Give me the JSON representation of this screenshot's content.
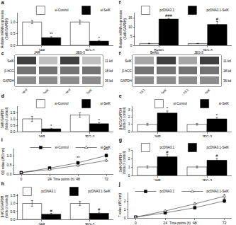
{
  "chart_data": [
    {
      "type": "bar",
      "title": "a",
      "ylabel": "Relative mRNA expression\n(SelK/GAPDH)",
      "categories": [
        "JAR",
        "JEG-3"
      ],
      "series": [
        {
          "name": "si-Control",
          "color": "white",
          "values": [
            1.0,
            1.0
          ],
          "errors": [
            0.07,
            0.09
          ]
        },
        {
          "name": "si-SelK",
          "color": "black",
          "values": [
            0.33,
            0.18
          ],
          "errors": [
            0.04,
            0.03
          ],
          "sig_labels": [
            "**",
            "*"
          ]
        }
      ],
      "ylim": [
        0,
        1.4
      ],
      "yticks": [
        {
          "value": 0.0,
          "label": "0.0"
        },
        0.5,
        {
          "value": 1.0,
          "label": "1.0"
        }
      ],
      "grid": false
    },
    {
      "type": "bar",
      "title": "f",
      "ylabel": "Relative mRNA expression\n(SelK/GAPDH)",
      "categories": [
        "BeWo",
        "JEG-3"
      ],
      "series": [
        {
          "name": "pcDNA3.1",
          "color": "white",
          "values": [
            1.0,
            1.0
          ],
          "errors": [
            0.12,
            0.07
          ]
        },
        {
          "name": "pcDNA3.1-SelK",
          "color": "black",
          "values": [
            14.5,
            11.5
          ],
          "errors": [
            0.4,
            1.6
          ],
          "sig_labels": [
            "###",
            "#"
          ]
        }
      ],
      "ylim": [
        0,
        18
      ],
      "yticks": [
        0,
        5,
        10,
        15
      ],
      "grid": false
    },
    {
      "type": "heatmap",
      "title": "c",
      "categories": [
        "si-Control",
        "si-SelK",
        "si-Control",
        "si-SelK"
      ],
      "y_categories": [
        "SelK",
        "β-hCG",
        "GAPDH"
      ],
      "row_annotations": [
        "11 kd",
        "18 kd",
        "36 kd"
      ],
      "column_groups": [
        "JAR",
        "JEG-3"
      ],
      "cells": [
        [
          0.75,
          0.25,
          0.75,
          0.25
        ],
        [
          0.55,
          0.55,
          0.55,
          0.55
        ],
        [
          0.45,
          0.45,
          0.45,
          0.45
        ]
      ],
      "zlim": [
        0,
        1
      ]
    },
    {
      "type": "heatmap",
      "title": "f",
      "categories": [
        "pcDNA3.1",
        "pcDNA3.1·SelK",
        "pcDNA3.1",
        "pcDNA3.1·SelK"
      ],
      "y_categories": [
        "SelK",
        "β-hCG",
        "GAPDH"
      ],
      "row_annotations": [
        "11 kd",
        "18 kd",
        "36 kd"
      ],
      "column_groups": [
        "BeWo",
        "JEG-3"
      ],
      "cells": [
        [
          0.35,
          0.75,
          0.35,
          0.75
        ],
        [
          0.55,
          0.55,
          0.55,
          0.55
        ],
        [
          0.45,
          0.45,
          0.45,
          0.45
        ]
      ],
      "zlim": [
        0,
        1
      ]
    },
    {
      "type": "bar",
      "title": "d",
      "ylabel": "SelK/GAPDH\n(folds of control)",
      "categories": [
        "JAR",
        "JEG-3"
      ],
      "series": [
        {
          "name": "si-Control",
          "color": "white",
          "values": [
            1.0,
            1.3
          ],
          "errors": [
            0.2,
            0.18
          ]
        },
        {
          "name": "si-SelK",
          "color": "black",
          "values": [
            0.22,
            0.62
          ],
          "errors": [
            0.04,
            0.09
          ],
          "sig_labels": [
            "*",
            "*"
          ]
        }
      ],
      "ylim": [
        0,
        2.0
      ],
      "yticks": [
        {
          "value": 0.0,
          "label": "0.0"
        },
        0.5,
        {
          "value": 1.0,
          "label": "1.0"
        },
        1.5
      ],
      "grid": false
    },
    {
      "type": "bar",
      "title": "e",
      "ylabel": "β-hCG/GAPDH\n(folds of control)",
      "categories": [
        "JAR",
        "JEG-3"
      ],
      "series": [
        {
          "name": "si-Control",
          "color": "white",
          "values": [
            1.0,
            1.0
          ],
          "errors": [
            0.14,
            0.11
          ]
        },
        {
          "name": "si-SelK",
          "color": "black",
          "values": [
            2.55,
            1.75
          ],
          "errors": [
            0.28,
            0.18
          ],
          "sig_labels": [
            "*",
            "*"
          ]
        }
      ],
      "ylim": [
        0,
        3.5
      ],
      "yticks": [
        0,
        1,
        2,
        3
      ],
      "grid": false
    },
    {
      "type": "line",
      "title": "i",
      "ylabel": "OD value (450 nm)",
      "xlabel": "Time points (h)",
      "x": [
        0,
        24,
        48,
        72
      ],
      "series": [
        {
          "name": "si-Control",
          "color": "black",
          "marker": "square",
          "line_style": "solid",
          "values": [
            0.08,
            0.33,
            0.62,
            1.02
          ],
          "errors": [
            0.02,
            0.04,
            0.06,
            0.07
          ]
        },
        {
          "name": "si-SelK",
          "color": "black",
          "marker": "triangle-up",
          "line_style": "solid",
          "values": [
            0.08,
            0.25,
            0.48,
            0.75
          ],
          "errors": [
            0.02,
            0.03,
            0.05,
            0.06
          ]
        }
      ],
      "annotations": [
        {
          "x": 48,
          "text": "**"
        },
        {
          "x": 72,
          "text": "***"
        }
      ],
      "xlim": [
        -6,
        78
      ],
      "xticks": [
        0,
        24,
        48,
        72
      ],
      "ylim": [
        0,
        1.4
      ],
      "yticks": [
        {
          "value": 0.0,
          "label": "0.0"
        },
        0.5,
        {
          "value": 1.0,
          "label": "1.0"
        }
      ],
      "grid": false
    },
    {
      "type": "bar",
      "title": "g",
      "ylabel": "SelK/GAPDH\n(folds of control)",
      "categories": [
        "JAR",
        "JEG-3"
      ],
      "series": [
        {
          "name": "pcDNA3.1",
          "color": "white",
          "values": [
            1.0,
            1.0
          ],
          "errors": [
            0.14,
            0.11
          ]
        },
        {
          "name": "pcDNA3.1-SelK",
          "color": "black",
          "values": [
            2.2,
            1.8
          ],
          "errors": [
            0.28,
            0.22
          ],
          "sig_labels": [
            "#",
            "#"
          ]
        }
      ],
      "ylim": [
        0,
        3.0
      ],
      "yticks": [
        0,
        1,
        2,
        3
      ],
      "grid": false
    },
    {
      "type": "bar",
      "title": "h",
      "ylabel": "β-hCG/GAPDH\n(folds of control)",
      "categories": [
        "JAR",
        "JEG-3"
      ],
      "series": [
        {
          "name": "pcDNA3.1",
          "color": "white",
          "values": [
            1.0,
            1.0
          ],
          "errors": [
            0.18,
            0.14
          ]
        },
        {
          "name": "pcDNA3.1-SelK",
          "color": "black",
          "values": [
            0.32,
            0.38
          ],
          "errors": [
            0.06,
            0.07
          ],
          "sig_labels": [
            "#",
            "#"
          ]
        }
      ],
      "ylim": [
        0,
        1.6
      ],
      "yticks": [
        {
          "value": 0.0,
          "label": "0.0"
        },
        0.5,
        {
          "value": 1.0,
          "label": "1.0"
        },
        1.5
      ],
      "grid": false
    },
    {
      "type": "line",
      "title": "j",
      "ylabel": "T value (450 nm)",
      "xlabel": "Time points (h)",
      "x": [
        0,
        24,
        48,
        72
      ],
      "series": [
        {
          "name": "pcDNA3.1",
          "color": "black",
          "marker": "square",
          "line_style": "solid",
          "values": [
            0.1,
            0.6,
            1.2,
            2.0
          ],
          "errors": [
            0.02,
            0.08,
            0.12,
            0.2
          ]
        },
        {
          "name": "pcDNA3.1-SelK",
          "color": "black",
          "marker": "triangle-up",
          "line_style": "solid",
          "values": [
            0.1,
            0.82,
            1.65,
            2.55
          ],
          "errors": [
            0.02,
            0.1,
            0.15,
            0.25
          ]
        }
      ],
      "xlim": [
        -6,
        78
      ],
      "xticks": [
        0,
        24,
        48,
        72
      ],
      "ylim": [
        0,
        3.0
      ],
      "yticks": [
        0,
        1,
        2
      ],
      "grid": false
    }
  ]
}
